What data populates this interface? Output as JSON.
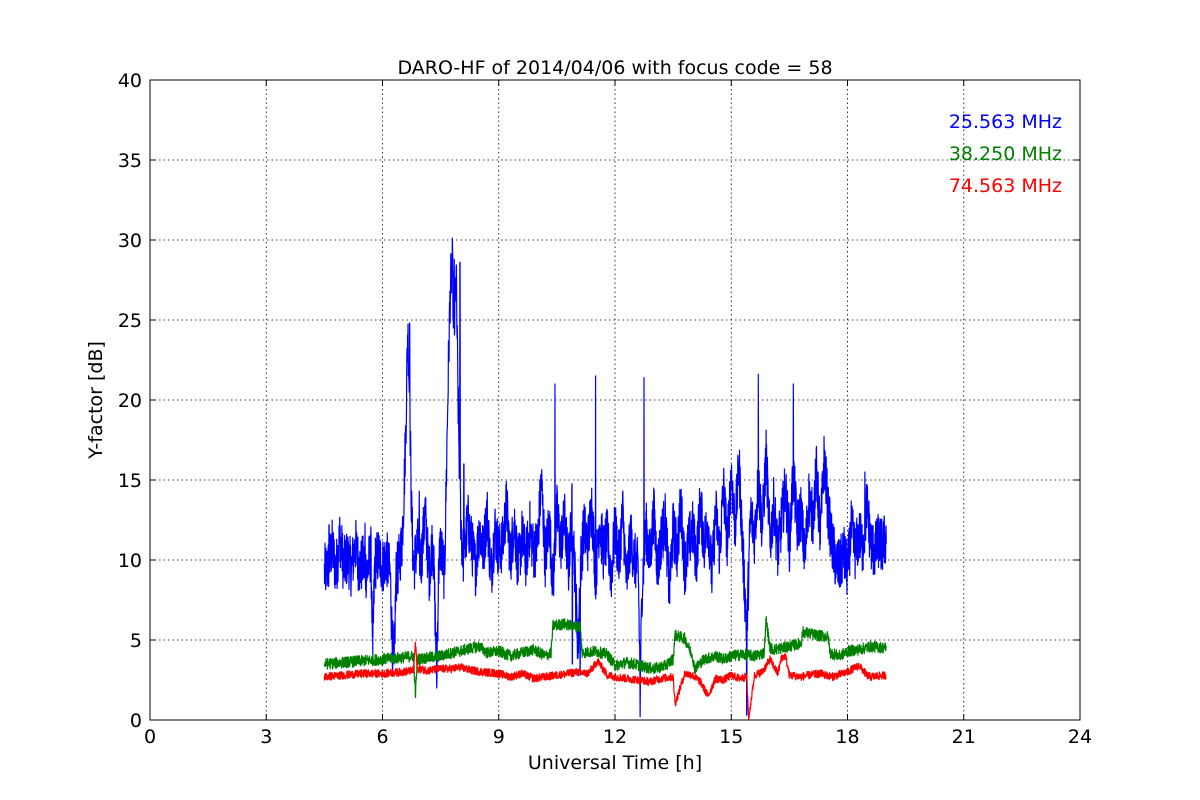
{
  "chart_data": {
    "type": "line",
    "title": "DARO-HF of 2014/04/06 with focus code = 58",
    "xlabel": "Universal Time [h]",
    "ylabel": "Y-factor [dB]",
    "xlim": [
      0,
      24
    ],
    "ylim": [
      0,
      40
    ],
    "xticks": [
      0,
      3,
      6,
      9,
      12,
      15,
      18,
      21,
      24
    ],
    "yticks": [
      0,
      5,
      10,
      15,
      20,
      25,
      30,
      35,
      40
    ],
    "grid": true,
    "legend_position": "top-right",
    "series": [
      {
        "name": "25.563 MHz",
        "color": "#0000ff",
        "x": [
          4.5,
          4.6,
          4.7,
          4.8,
          4.9,
          5.0,
          5.1,
          5.2,
          5.3,
          5.4,
          5.5,
          5.6,
          5.7,
          5.75,
          5.8,
          5.9,
          6.0,
          6.1,
          6.2,
          6.25,
          6.3,
          6.35,
          6.4,
          6.5,
          6.55,
          6.6,
          6.65,
          6.7,
          6.75,
          6.8,
          6.9,
          7.0,
          7.1,
          7.2,
          7.3,
          7.4,
          7.45,
          7.5,
          7.6,
          7.7,
          7.75,
          7.8,
          7.85,
          7.9,
          7.95,
          8.0,
          8.05,
          8.1,
          8.2,
          8.3,
          8.4,
          8.5,
          8.6,
          8.7,
          8.8,
          8.9,
          9.0,
          9.1,
          9.2,
          9.3,
          9.4,
          9.5,
          9.6,
          9.7,
          9.8,
          9.9,
          10.0,
          10.1,
          10.2,
          10.3,
          10.4,
          10.5,
          10.6,
          10.7,
          10.8,
          10.9,
          11.0,
          11.05,
          11.1,
          11.2,
          11.3,
          11.4,
          11.5,
          11.6,
          11.7,
          11.8,
          11.9,
          12.0,
          12.1,
          12.2,
          12.3,
          12.4,
          12.5,
          12.6,
          12.65,
          12.7,
          12.8,
          12.9,
          13.0,
          13.1,
          13.2,
          13.3,
          13.4,
          13.5,
          13.6,
          13.7,
          13.8,
          13.9,
          14.0,
          14.1,
          14.2,
          14.3,
          14.4,
          14.5,
          14.6,
          14.7,
          14.8,
          14.9,
          15.0,
          15.1,
          15.2,
          15.3,
          15.4,
          15.5,
          15.6,
          15.7,
          15.8,
          15.9,
          16.0,
          16.1,
          16.2,
          16.3,
          16.4,
          16.5,
          16.6,
          16.7,
          16.8,
          16.9,
          17.0,
          17.1,
          17.2,
          17.3,
          17.4,
          17.5,
          17.6,
          17.7,
          17.8,
          17.9,
          18.0,
          18.1,
          18.2,
          18.3,
          18.4,
          18.5,
          18.6,
          18.7,
          18.8,
          18.9,
          19.0
        ],
        "y": [
          9.2,
          9.6,
          10.8,
          9.3,
          11.5,
          9.6,
          10.2,
          9.4,
          11.0,
          9.5,
          9.8,
          9.2,
          10.5,
          4.5,
          9.8,
          10.3,
          9.6,
          10.2,
          9.0,
          5.0,
          3.5,
          9.0,
          9.5,
          11.0,
          14.0,
          18.0,
          24.5,
          20.0,
          13.0,
          9.5,
          11.0,
          10.0,
          13.0,
          9.0,
          11.5,
          3.0,
          9.5,
          11.0,
          9.0,
          22.0,
          27.0,
          28.5,
          24.0,
          28.0,
          20.0,
          14.0,
          11.0,
          10.0,
          12.5,
          11.0,
          9.5,
          12.0,
          10.5,
          13.0,
          9.0,
          12.0,
          10.5,
          11.0,
          13.5,
          10.0,
          12.5,
          9.5,
          11.5,
          10.0,
          12.0,
          10.5,
          11.0,
          15.0,
          10.0,
          12.5,
          8.5,
          13.0,
          11.0,
          12.5,
          9.5,
          13.5,
          7.0,
          4.5,
          9.5,
          12.0,
          11.0,
          13.5,
          9.0,
          12.5,
          10.5,
          11.5,
          9.0,
          12.0,
          10.0,
          13.0,
          8.5,
          11.5,
          10.0,
          9.5,
          2.0,
          8.5,
          12.0,
          10.0,
          13.0,
          9.5,
          11.5,
          12.5,
          8.0,
          12.0,
          10.5,
          13.5,
          9.5,
          11.0,
          12.0,
          10.0,
          13.5,
          11.0,
          12.5,
          9.0,
          13.0,
          10.5,
          14.5,
          11.0,
          15.5,
          12.0,
          16.0,
          10.5,
          5.5,
          13.0,
          11.5,
          15.0,
          12.0,
          16.5,
          11.0,
          13.5,
          10.5,
          12.5,
          14.5,
          11.0,
          15.5,
          12.0,
          13.0,
          10.0,
          14.0,
          12.5,
          15.5,
          11.5,
          16.5,
          13.0,
          11.0,
          9.8,
          9.5,
          10.5,
          9.2,
          12.0,
          10.5,
          11.5,
          10.8,
          13.5,
          11.0,
          10.5,
          11.2,
          10.8,
          11.5
        ],
        "peaks": [
          {
            "x": 4.62,
            "y": 12.2
          },
          {
            "x": 5.55,
            "y": 12.3
          },
          {
            "x": 5.75,
            "y": 4.0
          },
          {
            "x": 6.3,
            "y": 3.5
          },
          {
            "x": 6.7,
            "y": 24.8
          },
          {
            "x": 6.95,
            "y": 14.3
          },
          {
            "x": 7.4,
            "y": 2.0
          },
          {
            "x": 7.85,
            "y": 28.8
          },
          {
            "x": 8.0,
            "y": 28.6
          },
          {
            "x": 8.1,
            "y": 16.0
          },
          {
            "x": 10.45,
            "y": 21.0
          },
          {
            "x": 10.9,
            "y": 3.5
          },
          {
            "x": 11.1,
            "y": 2.8
          },
          {
            "x": 11.5,
            "y": 21.5
          },
          {
            "x": 12.65,
            "y": 0.2
          },
          {
            "x": 12.75,
            "y": 21.4
          },
          {
            "x": 15.4,
            "y": 0.3
          },
          {
            "x": 15.7,
            "y": 21.6
          },
          {
            "x": 16.6,
            "y": 21.0
          },
          {
            "x": 18.45,
            "y": 15.5
          }
        ]
      },
      {
        "name": "38.250 MHz",
        "color": "#008000",
        "x": [
          4.5,
          5.0,
          5.5,
          6.0,
          6.5,
          6.8,
          6.85,
          6.9,
          7.2,
          7.5,
          7.8,
          8.0,
          8.3,
          8.5,
          8.7,
          9.0,
          9.3,
          9.6,
          9.9,
          10.2,
          10.35,
          10.4,
          10.7,
          11.0,
          11.1,
          11.15,
          11.5,
          11.8,
          12.0,
          12.3,
          12.5,
          12.8,
          13.0,
          13.3,
          13.5,
          13.55,
          13.8,
          14.0,
          14.05,
          14.3,
          14.6,
          14.8,
          15.0,
          15.3,
          15.6,
          15.85,
          15.9,
          16.0,
          16.1,
          16.5,
          16.8,
          16.85,
          17.2,
          17.5,
          17.55,
          17.8,
          18.0,
          18.3,
          18.6,
          19.0
        ],
        "y": [
          3.5,
          3.6,
          3.7,
          3.8,
          3.9,
          4.0,
          1.5,
          3.8,
          3.9,
          4.0,
          4.2,
          4.3,
          4.5,
          4.6,
          4.2,
          4.3,
          4.0,
          4.2,
          4.4,
          4.0,
          4.2,
          5.9,
          6.0,
          5.8,
          5.9,
          4.2,
          4.3,
          4.1,
          3.4,
          3.6,
          3.5,
          3.3,
          3.2,
          3.4,
          3.8,
          5.3,
          5.1,
          4.0,
          3.2,
          3.8,
          4.0,
          3.8,
          4.0,
          4.1,
          4.0,
          4.2,
          6.3,
          4.5,
          4.4,
          4.6,
          4.8,
          5.5,
          5.3,
          5.2,
          4.2,
          4.0,
          4.3,
          4.4,
          4.6,
          4.5
        ]
      },
      {
        "name": "74.563 MHz",
        "color": "#ff0000",
        "x": [
          4.5,
          5.0,
          5.5,
          6.0,
          6.5,
          6.8,
          6.85,
          6.9,
          7.2,
          7.5,
          7.8,
          8.0,
          8.3,
          8.6,
          9.0,
          9.3,
          9.6,
          9.9,
          10.2,
          10.5,
          10.8,
          11.0,
          11.3,
          11.5,
          11.55,
          11.8,
          12.0,
          12.3,
          12.6,
          12.9,
          13.2,
          13.5,
          13.55,
          13.8,
          14.0,
          14.2,
          14.4,
          14.6,
          14.8,
          15.0,
          15.2,
          15.4,
          15.45,
          15.6,
          15.8,
          16.0,
          16.2,
          16.3,
          16.4,
          16.5,
          16.8,
          17.0,
          17.3,
          17.6,
          18.0,
          18.3,
          18.5,
          18.6,
          19.0
        ],
        "y": [
          2.7,
          2.8,
          2.9,
          2.9,
          3.0,
          3.1,
          4.8,
          3.2,
          3.1,
          3.2,
          3.2,
          3.3,
          3.1,
          3.0,
          2.9,
          2.7,
          2.9,
          2.6,
          2.7,
          2.8,
          2.9,
          3.0,
          2.9,
          3.5,
          3.7,
          2.8,
          2.7,
          2.6,
          2.5,
          2.4,
          2.6,
          2.7,
          1.0,
          2.9,
          2.8,
          2.4,
          1.5,
          2.6,
          2.5,
          2.8,
          2.6,
          2.7,
          0.1,
          2.8,
          3.0,
          3.8,
          2.9,
          3.9,
          4.0,
          2.8,
          2.7,
          2.8,
          2.9,
          2.7,
          3.0,
          3.4,
          2.8,
          2.7,
          2.8
        ]
      }
    ]
  }
}
